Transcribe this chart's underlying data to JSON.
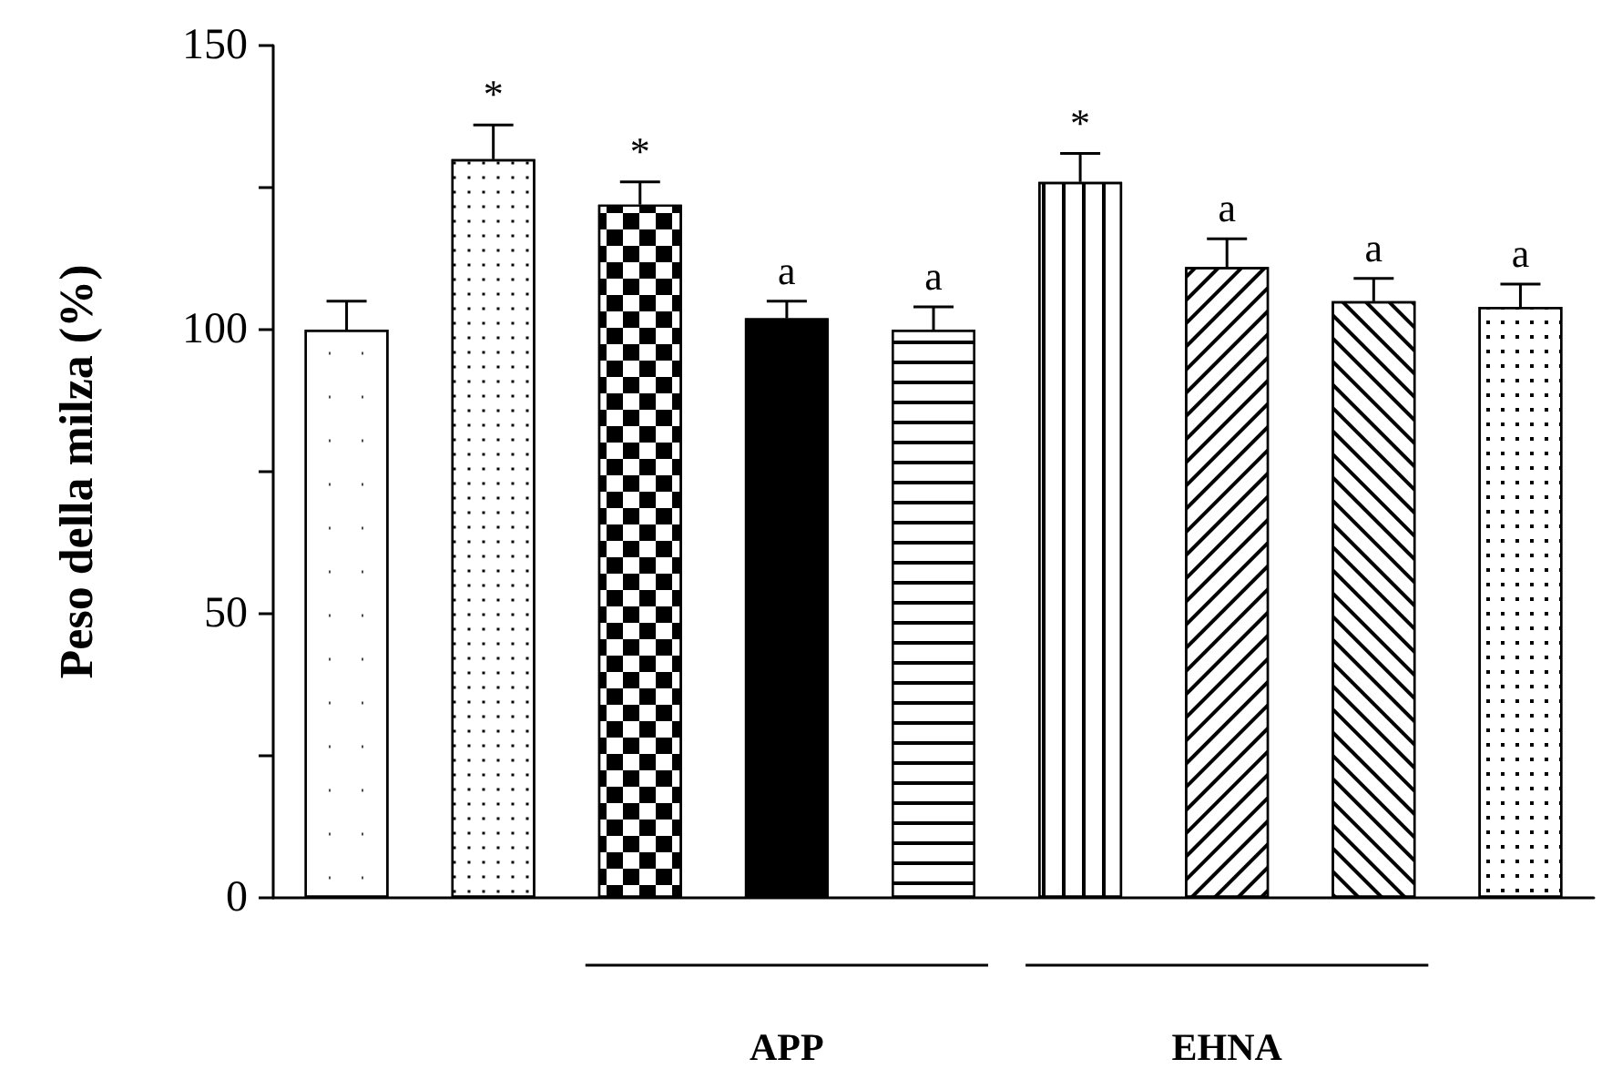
{
  "chart_data": {
    "type": "bar",
    "ylabel": "Peso della milza (%)",
    "categories": [
      null,
      null,
      null,
      null,
      null,
      null,
      null,
      null,
      null
    ],
    "values": [
      100,
      130,
      122,
      102,
      100,
      126,
      111,
      105,
      104
    ],
    "errors": [
      5,
      6,
      4,
      3,
      4,
      5,
      5,
      4,
      4
    ],
    "value_labels": [
      null,
      "*",
      "*",
      "a",
      "a",
      "*",
      "a",
      "a",
      "a"
    ],
    "colors": [
      "#ffffff",
      "#ffffff",
      "#ffffff",
      "#000000",
      "#ffffff",
      "#ffffff",
      "#ffffff",
      "#ffffff",
      "#ffffff"
    ],
    "ylim": [
      0,
      150
    ],
    "yticks": [
      0,
      {
        "value": 25,
        "label": null
      },
      50,
      {
        "value": 75,
        "label": null
      },
      100,
      {
        "value": 125,
        "label": null
      },
      150
    ],
    "annotations": [
      "APP",
      "EHNA"
    ]
  }
}
